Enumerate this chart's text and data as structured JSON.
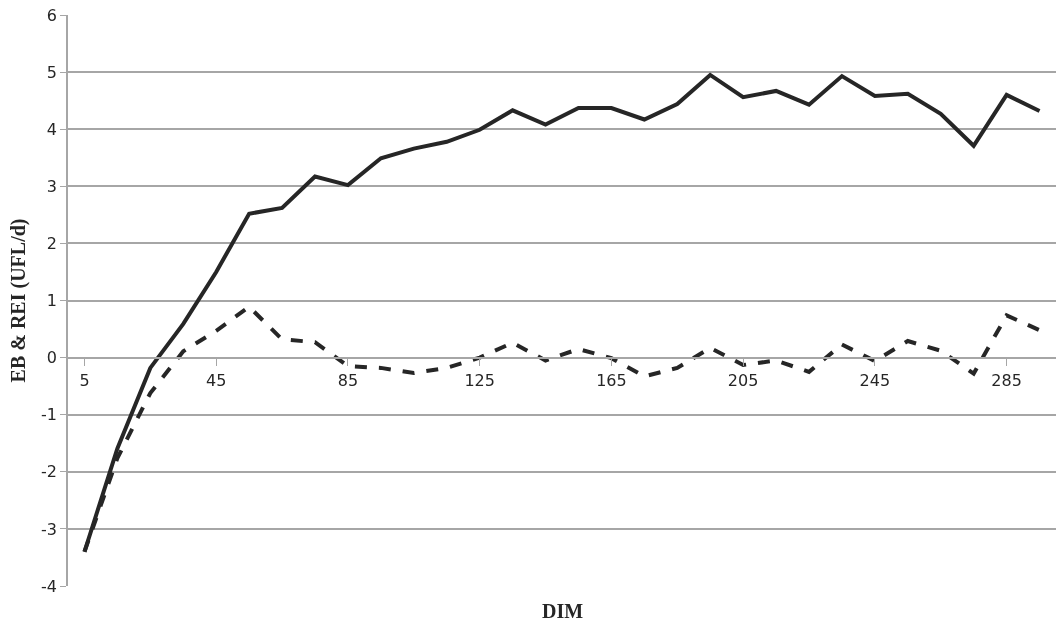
{
  "chart_data": {
    "type": "line",
    "xlabel": "DIM",
    "ylabel": "EB & REI (UFL/d)",
    "categories": [
      "5",
      null,
      null,
      null,
      "45",
      null,
      null,
      null,
      "85",
      null,
      null,
      null,
      "125",
      null,
      null,
      null,
      "165",
      null,
      null,
      null,
      "205",
      null,
      null,
      null,
      "245",
      null,
      null,
      null,
      "285",
      null
    ],
    "series": [
      {
        "color": "#262626",
        "line_style": "solid",
        "values": [
          -3.4,
          -1.59,
          -0.18,
          0.59,
          1.5,
          2.52,
          2.62,
          3.17,
          3.02,
          3.49,
          3.66,
          3.78,
          3.99,
          4.33,
          4.08,
          4.37,
          4.37,
          4.17,
          4.44,
          4.95,
          4.56,
          4.67,
          4.43,
          4.93,
          4.58,
          4.62,
          4.27,
          3.71,
          4.6,
          4.32
        ]
      },
      {
        "color": "#262626",
        "line_style": "dashed",
        "values": [
          -3.4,
          -1.76,
          -0.62,
          0.11,
          0.47,
          0.89,
          0.32,
          0.27,
          -0.15,
          -0.18,
          -0.27,
          -0.18,
          0.0,
          0.26,
          -0.05,
          0.15,
          -0.01,
          -0.33,
          -0.18,
          0.17,
          -0.13,
          -0.05,
          -0.25,
          0.23,
          -0.06,
          0.29,
          0.12,
          -0.28,
          0.74,
          0.48
        ]
      }
    ],
    "ylim": [
      -4,
      6
    ],
    "yticks": [
      -4,
      -3,
      -2,
      -1,
      0,
      1,
      2,
      3,
      4,
      5,
      6
    ],
    "grid": "y",
    "marker": "none"
  }
}
